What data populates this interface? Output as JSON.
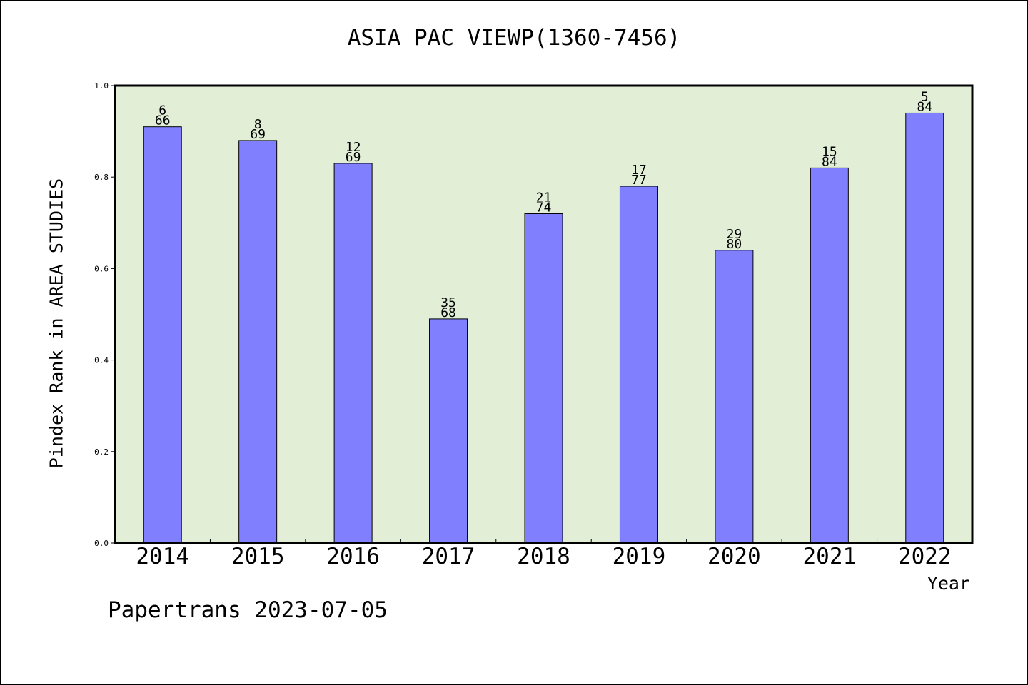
{
  "chart_data": {
    "type": "bar",
    "title": "ASIA PAC VIEWP(1360-7456)",
    "xlabel": "Year",
    "ylabel": "Pindex Rank in AREA STUDIES",
    "ylim": [
      0,
      1.0
    ],
    "yticks": [
      "0.0",
      "0.2",
      "0.4",
      "0.6",
      "0.8",
      "1.0"
    ],
    "categories": [
      "2014",
      "2015",
      "2016",
      "2017",
      "2018",
      "2019",
      "2020",
      "2021",
      "2022"
    ],
    "values": [
      0.91,
      0.88,
      0.83,
      0.49,
      0.72,
      0.78,
      0.64,
      0.82,
      0.94
    ],
    "rank_labels": [
      "6",
      "8",
      "12",
      "35",
      "21",
      "17",
      "29",
      "15",
      "5"
    ],
    "total_labels": [
      "66",
      "69",
      "69",
      "68",
      "74",
      "77",
      "80",
      "84",
      "84"
    ],
    "grid": false,
    "colors": {
      "plot_bg": "#e2efd6",
      "bar": "#8080ff",
      "bar_edge": "#000000"
    }
  },
  "footer": "Papertrans 2023-07-05"
}
